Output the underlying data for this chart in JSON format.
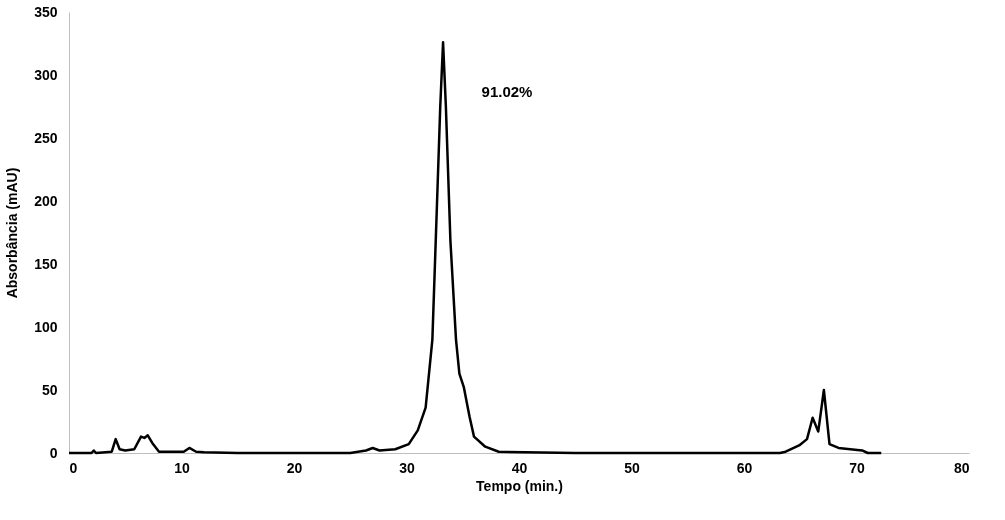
{
  "chart_data": {
    "type": "line",
    "xlabel": "Tempo (min.)",
    "ylabel": "Absorbância (mAU)",
    "xlim": [
      0,
      80
    ],
    "xticks": [
      0,
      10,
      20,
      30,
      40,
      50,
      60,
      70,
      80
    ],
    "ylim": [
      0,
      350
    ],
    "yticks": [
      0,
      50,
      100,
      150,
      200,
      250,
      300,
      350
    ],
    "grid": false,
    "marker": "none",
    "line_style": "solid",
    "annotations": [
      "91.02%"
    ],
    "series": [
      {
        "color": "#000000",
        "x": [
          0,
          2.0,
          2.2,
          2.4,
          3.8,
          4.15,
          4.5,
          5.0,
          5.8,
          6.4,
          6.7,
          7.0,
          7.4,
          8.0,
          9.0,
          10.2,
          10.7,
          11.3,
          12.0,
          15,
          20,
          25,
          26.4,
          27.0,
          27.6,
          29.0,
          30.2,
          31.0,
          31.7,
          32.3,
          32.7,
          33.0,
          33.25,
          33.5,
          33.9,
          34.4,
          34.7,
          35.1,
          35.6,
          36.0,
          37.0,
          38.2,
          45,
          55,
          63.2,
          63.7,
          64.9,
          65.6,
          66.1,
          66.6,
          67.1,
          67.6,
          68.4,
          70.5,
          71.0,
          72.2
        ],
        "values": [
          0,
          0,
          2,
          0,
          1,
          11,
          3,
          2,
          3,
          13,
          12,
          14,
          8,
          1,
          1,
          1,
          4,
          1,
          0.5,
          0,
          0,
          0,
          2,
          4,
          2,
          3,
          7,
          18,
          36,
          90,
          195,
          275,
          326,
          275,
          169,
          90,
          63,
          52,
          29,
          13,
          5,
          1,
          0,
          0,
          0,
          1,
          6,
          11,
          28,
          17,
          50,
          7,
          4,
          2,
          0,
          0
        ]
      }
    ]
  }
}
